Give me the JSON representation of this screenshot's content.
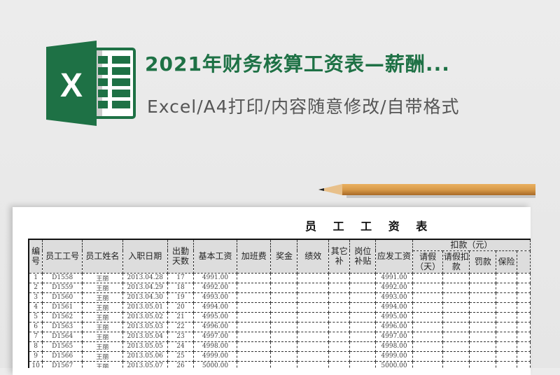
{
  "header": {
    "title": "2021年财务核算工资表—薪酬...",
    "subtitle": "Excel/A4打印/内容随意修改/自带格式",
    "logo_letter": "X",
    "brand_color": "#1e7145"
  },
  "sheet": {
    "title": "员 工 工 资 表",
    "columns": [
      "编号",
      "员工工号",
      "员工姓名",
      "入职日期",
      "出勤天数",
      "基本工资",
      "加班费",
      "奖金",
      "绩效",
      "其它补",
      "岗位补贴",
      "应发工资"
    ],
    "deduction_group": "扣款（元）",
    "deduction_columns": [
      "请假（天）",
      "请假扣款",
      "罚款",
      "保险"
    ],
    "rows": [
      [
        "1",
        "D1558",
        "王丽",
        "2013.04.28",
        "17",
        "4991.00",
        "4991.00"
      ],
      [
        "2",
        "D1559",
        "王丽",
        "2013.04.29",
        "18",
        "4992.00",
        "4992.00"
      ],
      [
        "3",
        "D1560",
        "王丽",
        "2013.04.30",
        "19",
        "4993.00",
        "4993.00"
      ],
      [
        "4",
        "D1561",
        "王丽",
        "2013.05.01",
        "20",
        "4994.00",
        "4994.00"
      ],
      [
        "5",
        "D1562",
        "王丽",
        "2013.05.02",
        "21",
        "4995.00",
        "4995.00"
      ],
      [
        "6",
        "D1563",
        "王丽",
        "2013.05.03",
        "22",
        "4996.00",
        "4996.00"
      ],
      [
        "7",
        "D1564",
        "王丽",
        "2013.05.04",
        "23",
        "4997.00",
        "4997.00"
      ],
      [
        "8",
        "D1565",
        "王丽",
        "2013.05.05",
        "24",
        "4998.00",
        "4998.00"
      ],
      [
        "9",
        "D1566",
        "王丽",
        "2013.05.06",
        "25",
        "4999.00",
        "4999.00"
      ],
      [
        "10",
        "D1567",
        "王丽",
        "2013.05.07",
        "26",
        "5000.00",
        "5000.00"
      ]
    ]
  }
}
